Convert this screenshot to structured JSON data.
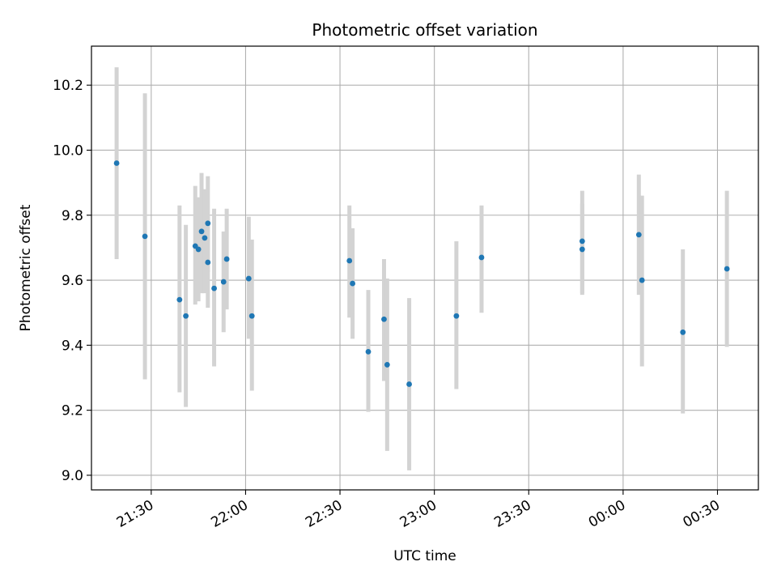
{
  "chart_data": {
    "type": "scatter",
    "title": "Photometric offset variation",
    "xlabel": "UTC time",
    "ylabel": "Photometric offset",
    "xlim": [
      "21:11",
      "00:43"
    ],
    "ylim": [
      8.955,
      10.32
    ],
    "x_ticks": [
      "21:30",
      "22:00",
      "22:30",
      "23:00",
      "23:30",
      "00:00",
      "00:30"
    ],
    "y_ticks": [
      "9.0",
      "9.2",
      "9.4",
      "9.6",
      "9.8",
      "10.0",
      "10.2"
    ],
    "grid": true,
    "marker_color": "#1f77b4",
    "errorbar_color": "#d3d3d3",
    "points": [
      {
        "x": "21:19",
        "y": 9.96,
        "ylo": 9.665,
        "yhi": 10.255
      },
      {
        "x": "21:28",
        "y": 9.735,
        "ylo": 9.295,
        "yhi": 10.175
      },
      {
        "x": "21:39",
        "y": 9.54,
        "ylo": 9.255,
        "yhi": 9.83
      },
      {
        "x": "21:41",
        "y": 9.49,
        "ylo": 9.21,
        "yhi": 9.77
      },
      {
        "x": "21:44",
        "y": 9.705,
        "ylo": 9.525,
        "yhi": 9.89
      },
      {
        "x": "21:45",
        "y": 9.695,
        "ylo": 9.535,
        "yhi": 9.855
      },
      {
        "x": "21:46",
        "y": 9.75,
        "ylo": 9.56,
        "yhi": 9.93
      },
      {
        "x": "21:47",
        "y": 9.73,
        "ylo": 9.56,
        "yhi": 9.88
      },
      {
        "x": "21:48",
        "y": 9.655,
        "ylo": 9.515,
        "yhi": 9.795
      },
      {
        "x": "21:48",
        "y": 9.775,
        "ylo": 9.625,
        "yhi": 9.92
      },
      {
        "x": "21:50",
        "y": 9.575,
        "ylo": 9.335,
        "yhi": 9.82
      },
      {
        "x": "21:53",
        "y": 9.595,
        "ylo": 9.44,
        "yhi": 9.75
      },
      {
        "x": "21:54",
        "y": 9.665,
        "ylo": 9.51,
        "yhi": 9.82
      },
      {
        "x": "22:01",
        "y": 9.605,
        "ylo": 9.42,
        "yhi": 9.795
      },
      {
        "x": "22:02",
        "y": 9.49,
        "ylo": 9.26,
        "yhi": 9.725
      },
      {
        "x": "22:33",
        "y": 9.66,
        "ylo": 9.485,
        "yhi": 9.83
      },
      {
        "x": "22:34",
        "y": 9.59,
        "ylo": 9.42,
        "yhi": 9.76
      },
      {
        "x": "22:39",
        "y": 9.38,
        "ylo": 9.195,
        "yhi": 9.57
      },
      {
        "x": "22:44",
        "y": 9.48,
        "ylo": 9.29,
        "yhi": 9.665
      },
      {
        "x": "22:45",
        "y": 9.34,
        "ylo": 9.075,
        "yhi": 9.605
      },
      {
        "x": "22:52",
        "y": 9.28,
        "ylo": 9.015,
        "yhi": 9.545
      },
      {
        "x": "23:07",
        "y": 9.49,
        "ylo": 9.265,
        "yhi": 9.72
      },
      {
        "x": "23:15",
        "y": 9.67,
        "ylo": 9.5,
        "yhi": 9.83
      },
      {
        "x": "23:47",
        "y": 9.72,
        "ylo": 9.56,
        "yhi": 9.875
      },
      {
        "x": "23:47",
        "y": 9.695,
        "ylo": 9.555,
        "yhi": 9.835
      },
      {
        "x": "00:05",
        "y": 9.74,
        "ylo": 9.555,
        "yhi": 9.925
      },
      {
        "x": "00:06",
        "y": 9.6,
        "ylo": 9.335,
        "yhi": 9.86
      },
      {
        "x": "00:19",
        "y": 9.44,
        "ylo": 9.19,
        "yhi": 9.695
      },
      {
        "x": "00:33",
        "y": 9.635,
        "ylo": 9.395,
        "yhi": 9.875
      }
    ]
  }
}
